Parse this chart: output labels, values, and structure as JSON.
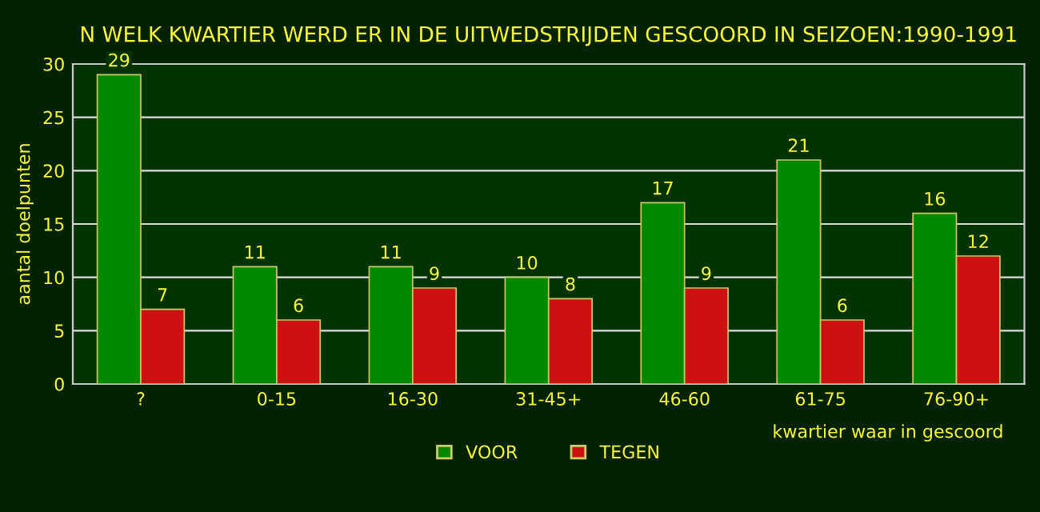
{
  "chart_data": {
    "type": "bar",
    "title": "N WELK KWARTIER WERD ER IN DE UITWEDSTRIJDEN GESCOORD IN SEIZOEN:1990-1991",
    "xlabel": "kwartier waar in gescoord",
    "ylabel": "aantal doelpunten",
    "categories": [
      "?",
      "0-15",
      "16-30",
      "31-45+",
      "46-60",
      "61-75",
      "76-90+"
    ],
    "series": [
      {
        "name": "VOOR",
        "color": "#008800",
        "values": [
          29,
          11,
          11,
          10,
          17,
          21,
          16
        ]
      },
      {
        "name": "TEGEN",
        "color": "#cc1111",
        "values": [
          7,
          6,
          9,
          8,
          9,
          6,
          12
        ]
      }
    ],
    "ylim": [
      0,
      30
    ],
    "yticks": [
      0,
      5,
      10,
      15,
      20,
      25,
      30
    ],
    "grid": "y",
    "legend": "bottom",
    "data_labels": true
  }
}
